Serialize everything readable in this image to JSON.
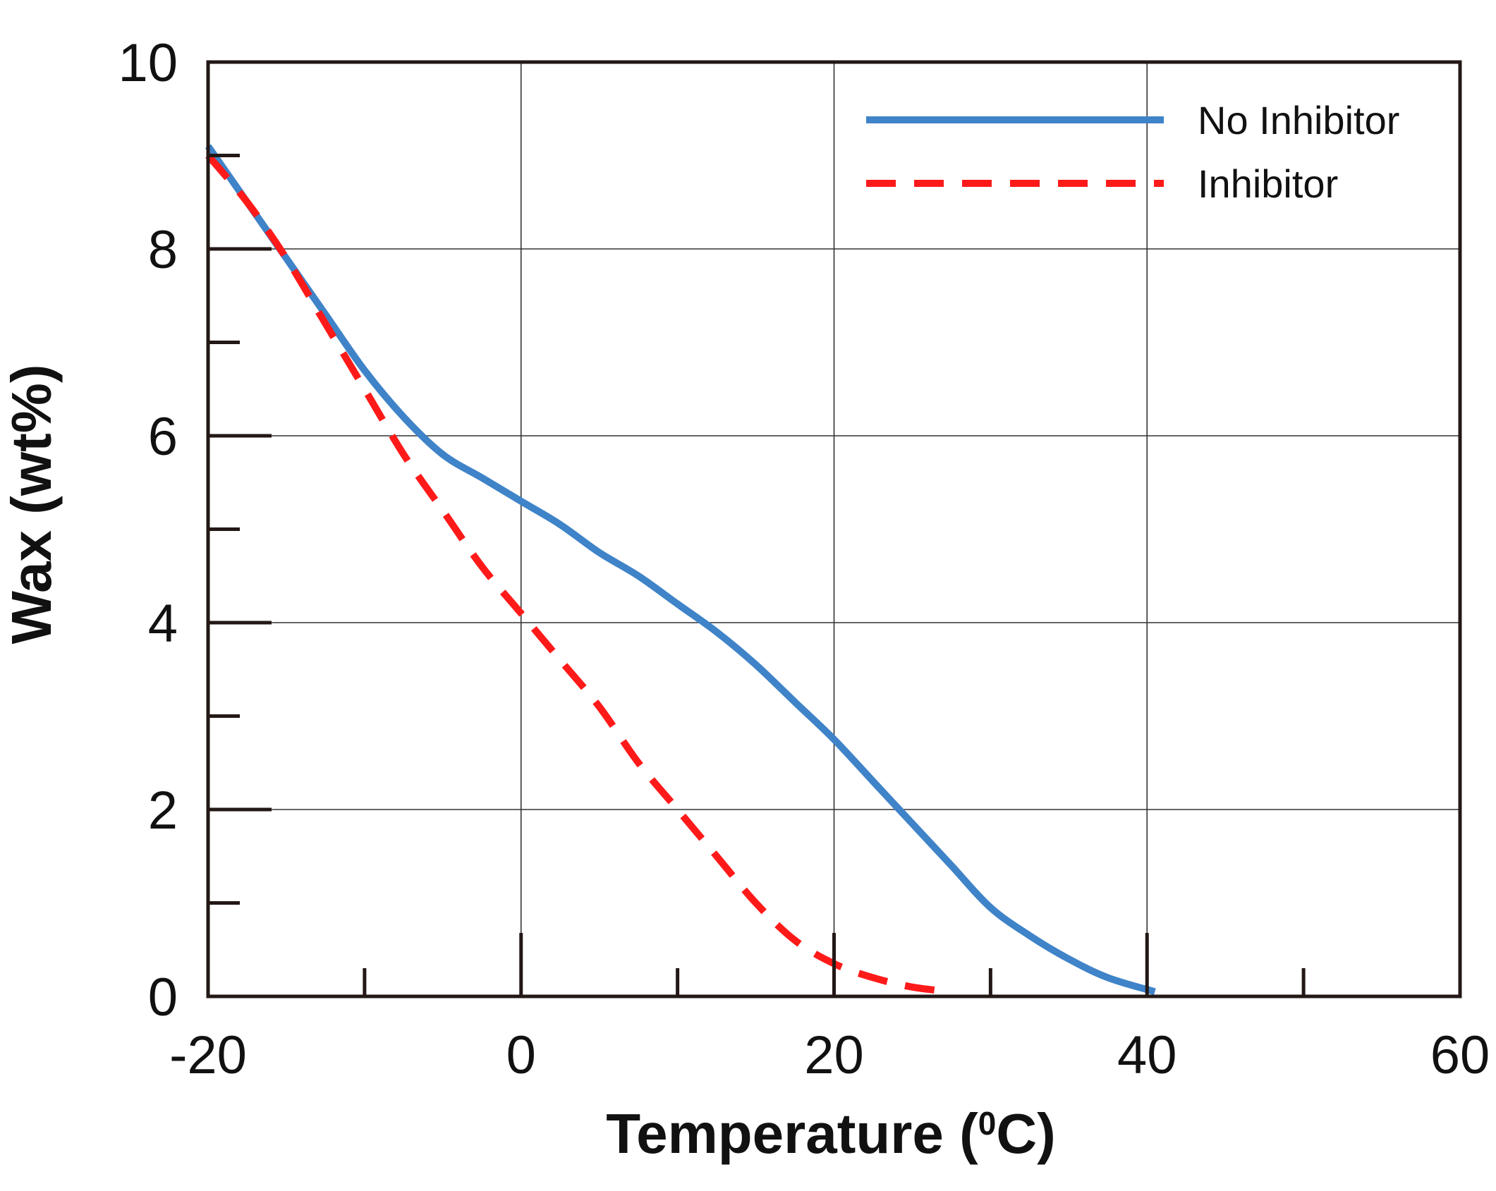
{
  "chart_data": {
    "type": "line",
    "title": "",
    "xlabel": "Temperature (",
    "xlabel_sup": "0",
    "xlabel_end": "C)",
    "ylabel": "Wax (wt%)",
    "xlim": [
      -20,
      60
    ],
    "ylim": [
      0,
      10
    ],
    "x_ticks": [
      -20,
      0,
      20,
      40,
      60
    ],
    "y_ticks": [
      0,
      2,
      4,
      6,
      8,
      10
    ],
    "x_tick_labels": [
      "-20",
      "0",
      "20",
      "40",
      "60"
    ],
    "y_tick_labels": [
      "0",
      "2",
      "4",
      "6",
      "8",
      "10"
    ],
    "grid": true,
    "legend_position": "top-right",
    "series": [
      {
        "name": "No Inhibitor",
        "color": "#3f83c8",
        "style": "solid",
        "x": [
          -20,
          -17.5,
          -15,
          -12.5,
          -10,
          -7.5,
          -5,
          -2.5,
          0,
          2.5,
          5,
          7.5,
          10,
          12.5,
          15,
          17.5,
          20,
          22.5,
          25,
          27.5,
          30,
          32.5,
          35,
          37.5,
          40.5
        ],
        "y": [
          9.1,
          8.5,
          7.9,
          7.3,
          6.7,
          6.2,
          5.8,
          5.55,
          5.3,
          5.05,
          4.75,
          4.5,
          4.2,
          3.9,
          3.55,
          3.15,
          2.75,
          2.3,
          1.85,
          1.4,
          0.95,
          0.65,
          0.4,
          0.2,
          0.05
        ]
      },
      {
        "name": "Inhibitor",
        "color": "#ff1a1a",
        "style": "dashed",
        "x": [
          -20,
          -17.5,
          -15,
          -12.5,
          -10,
          -7.5,
          -5,
          -2.5,
          0,
          2.5,
          5,
          7.5,
          10,
          12.5,
          15,
          17.5,
          20,
          22.5,
          25,
          27.5
        ],
        "y": [
          9.0,
          8.5,
          7.9,
          7.2,
          6.5,
          5.8,
          5.2,
          4.6,
          4.1,
          3.6,
          3.1,
          2.5,
          2.0,
          1.5,
          1.0,
          0.6,
          0.35,
          0.2,
          0.1,
          0.05
        ]
      }
    ]
  }
}
